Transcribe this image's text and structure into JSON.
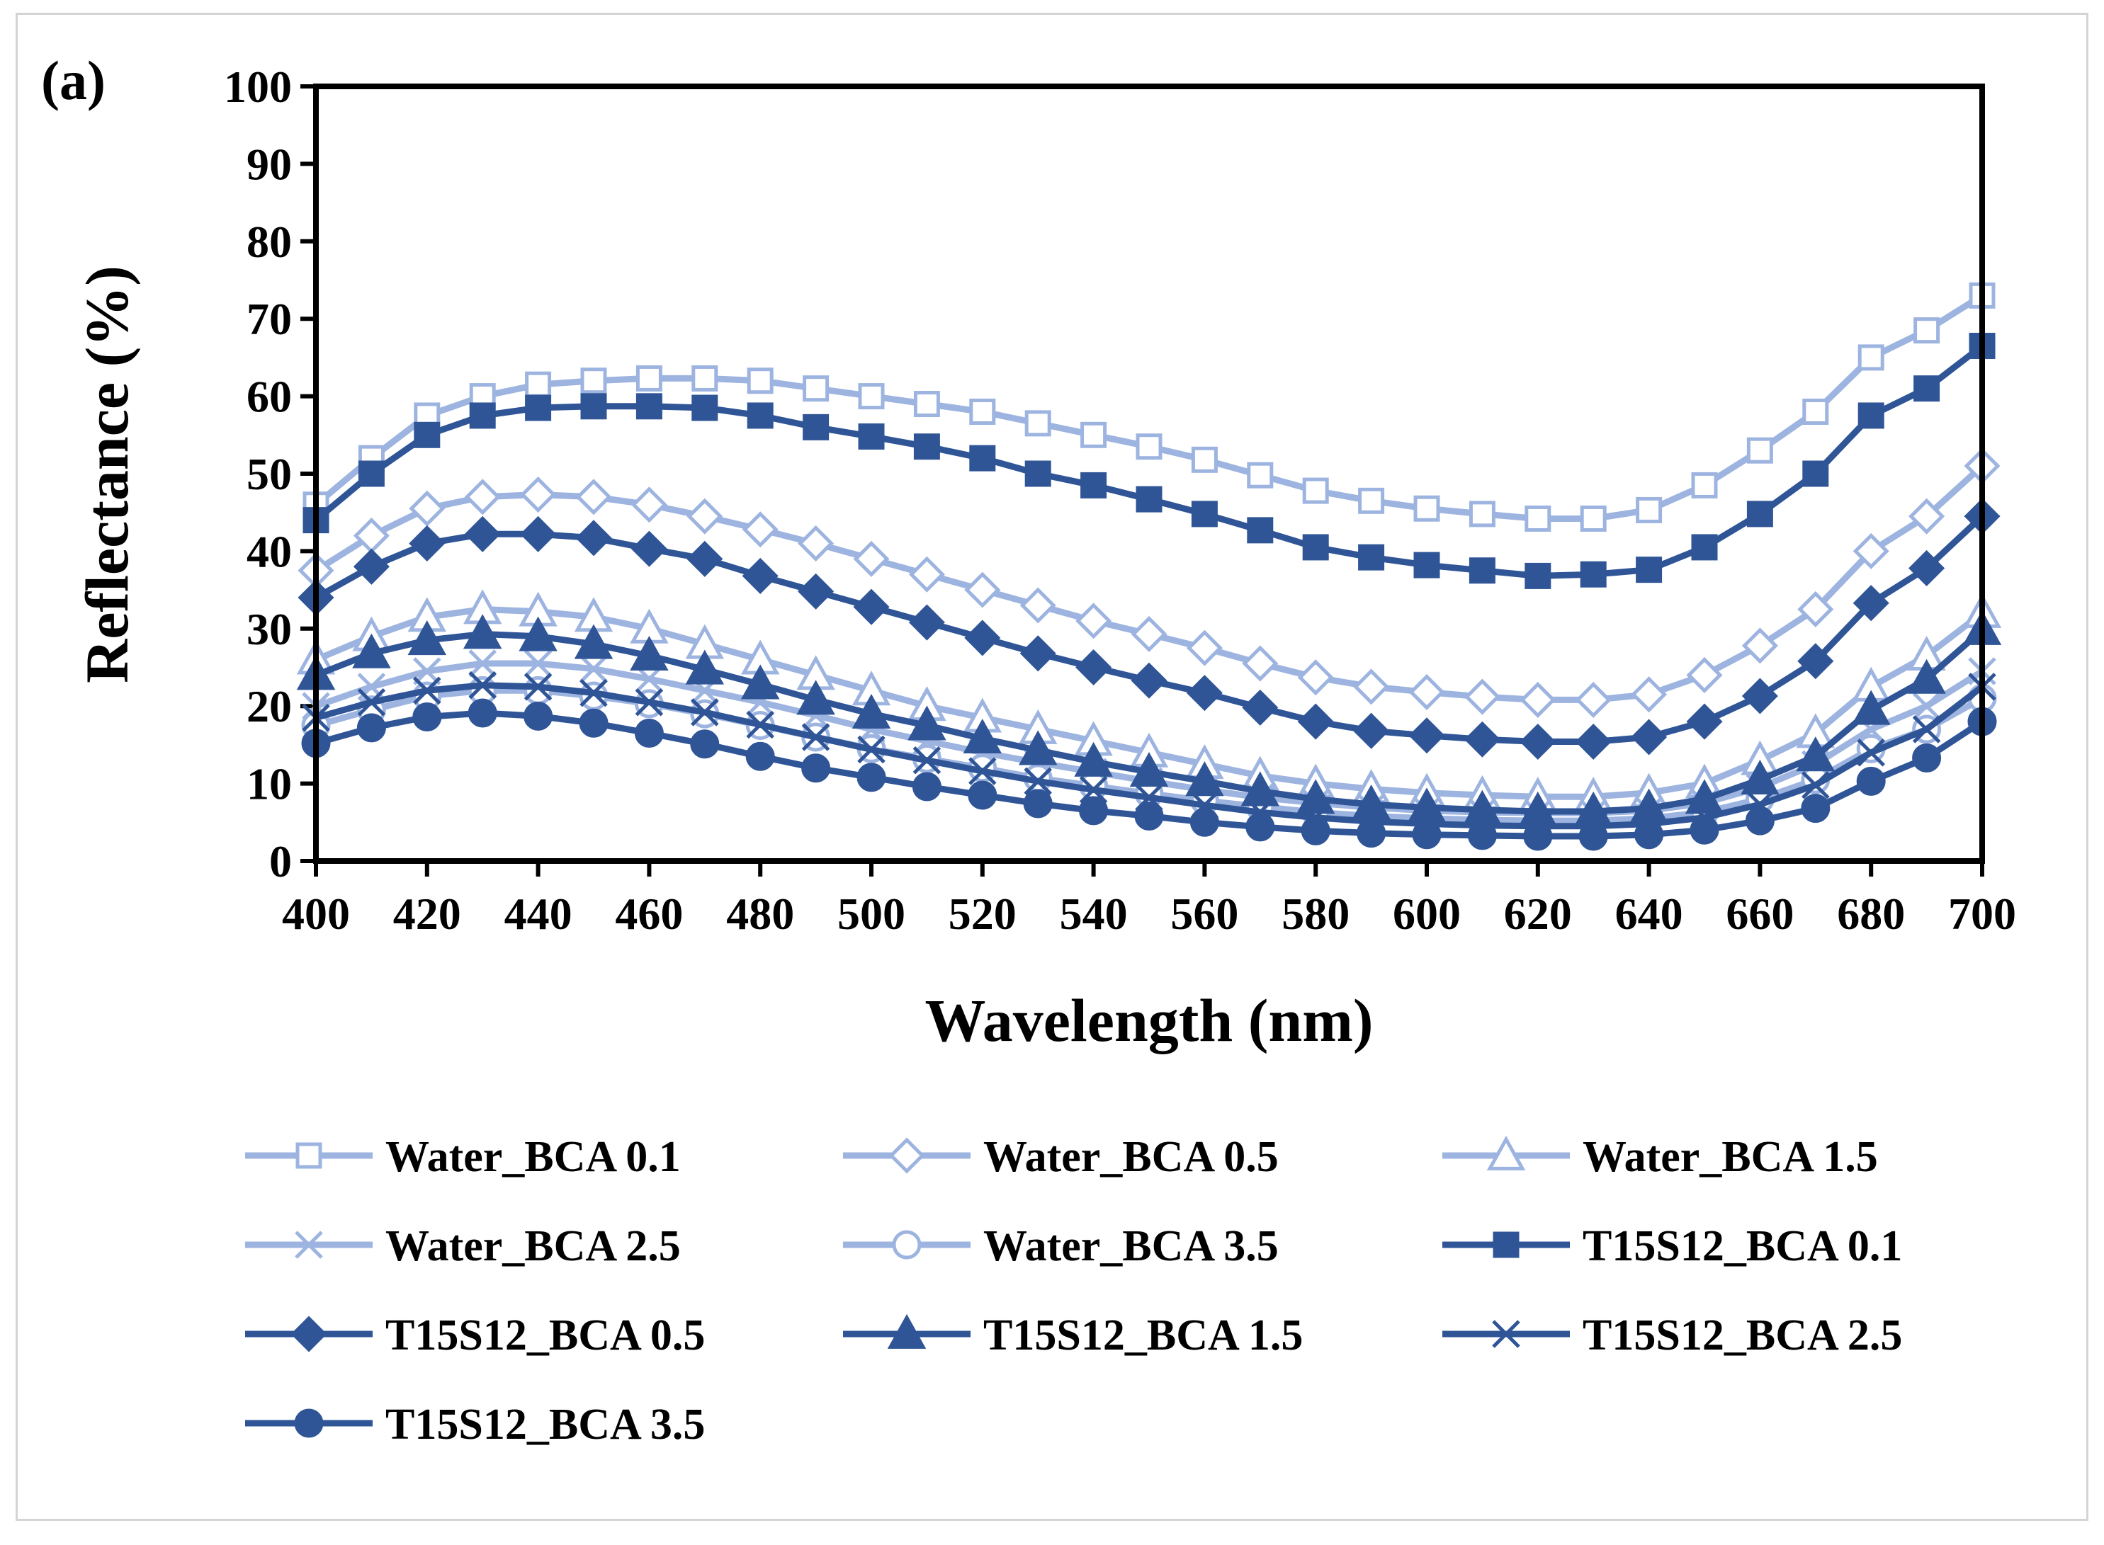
{
  "panel_label": "(a)",
  "chart_data": {
    "type": "line",
    "xlabel": "Wavelength (nm)",
    "ylabel": "Reflectance (%)",
    "xlim": [
      400,
      700
    ],
    "ylim": [
      0,
      100
    ],
    "xticks": [
      400,
      420,
      440,
      460,
      480,
      500,
      520,
      540,
      560,
      580,
      600,
      620,
      640,
      660,
      680,
      700
    ],
    "yticks": [
      0,
      10,
      20,
      30,
      40,
      50,
      60,
      70,
      80,
      90,
      100
    ],
    "x": [
      400,
      410,
      420,
      430,
      440,
      450,
      460,
      470,
      480,
      490,
      500,
      510,
      520,
      530,
      540,
      550,
      560,
      570,
      580,
      590,
      600,
      610,
      620,
      630,
      640,
      650,
      660,
      670,
      680,
      690,
      700
    ],
    "grid": false,
    "legend_position": "bottom",
    "series": [
      {
        "name": "Water_BCA 0.1",
        "color": "#9db4e0",
        "marker": "square",
        "filled": false,
        "values": [
          46,
          52,
          57.5,
          60,
          61.5,
          62,
          62.3,
          62.3,
          62,
          61,
          60,
          59,
          58,
          56.5,
          55,
          53.5,
          51.8,
          49.8,
          47.8,
          46.5,
          45.5,
          44.8,
          44.2,
          44.2,
          45.3,
          48.5,
          53,
          58,
          65,
          68.5,
          73
        ]
      },
      {
        "name": "Water_BCA 0.5",
        "color": "#9db4e0",
        "marker": "diamond",
        "filled": false,
        "values": [
          37.5,
          42,
          45.5,
          47,
          47.3,
          47,
          46,
          44.5,
          42.8,
          41,
          39,
          37,
          35,
          33,
          31,
          29.3,
          27.5,
          25.5,
          23.7,
          22.5,
          21.8,
          21.2,
          20.8,
          20.8,
          21.5,
          24,
          27.8,
          32.5,
          40,
          44.5,
          51
        ]
      },
      {
        "name": "Water_BCA 1.5",
        "color": "#9db4e0",
        "marker": "triangle",
        "filled": false,
        "values": [
          26,
          29,
          31.5,
          32.5,
          32.2,
          31.5,
          30,
          28,
          26,
          24,
          22,
          20,
          18.5,
          17,
          15.5,
          14,
          12.5,
          11,
          10,
          9.3,
          8.8,
          8.5,
          8.3,
          8.3,
          8.8,
          10,
          13,
          16.5,
          22.5,
          26.5,
          32
        ]
      },
      {
        "name": "Water_BCA 2.5",
        "color": "#9db4e0",
        "marker": "x",
        "filled": false,
        "values": [
          20,
          22.5,
          24.5,
          25.5,
          25.5,
          24.8,
          23.5,
          22,
          20.5,
          18.8,
          17,
          15.5,
          14,
          12.7,
          11.5,
          10.3,
          9.2,
          8.2,
          7.5,
          6.9,
          6.5,
          6.3,
          6.2,
          6.2,
          6.5,
          7.5,
          9.5,
          12.5,
          17,
          20,
          24.5
        ]
      },
      {
        "name": "Water_BCA 3.5",
        "color": "#9db4e0",
        "marker": "circle",
        "filled": false,
        "values": [
          17.5,
          19.5,
          21.3,
          22,
          22,
          21.3,
          20.3,
          19,
          17.5,
          16,
          14.5,
          13.2,
          12,
          10.7,
          9.7,
          8.7,
          7.8,
          7,
          6.3,
          5.8,
          5.5,
          5.3,
          5.2,
          5.2,
          5.5,
          6.3,
          8,
          10.5,
          14.5,
          17,
          21
        ]
      },
      {
        "name": "T15S12_BCA 0.1",
        "color": "#2f5597",
        "marker": "square",
        "filled": true,
        "values": [
          44,
          50,
          55,
          57.5,
          58.5,
          58.7,
          58.7,
          58.5,
          57.5,
          56,
          54.8,
          53.5,
          52,
          50,
          48.5,
          46.7,
          44.8,
          42.7,
          40.5,
          39.2,
          38.2,
          37.5,
          36.8,
          37,
          37.6,
          40.5,
          44.8,
          50,
          57.5,
          61,
          66.5
        ]
      },
      {
        "name": "T15S12_BCA 0.5",
        "color": "#2f5597",
        "marker": "diamond",
        "filled": true,
        "values": [
          34,
          38,
          41,
          42.2,
          42.2,
          41.7,
          40.3,
          39,
          36.8,
          34.8,
          32.8,
          30.8,
          28.8,
          26.8,
          25,
          23.3,
          21.7,
          19.8,
          18,
          16.8,
          16.2,
          15.7,
          15.4,
          15.4,
          16,
          18,
          21.3,
          25.8,
          33.3,
          37.8,
          44.5
        ]
      },
      {
        "name": "T15S12_BCA 1.5",
        "color": "#2f5597",
        "marker": "triangle",
        "filled": true,
        "values": [
          24,
          26.8,
          28.5,
          29.3,
          29,
          28,
          26.5,
          24.7,
          22.8,
          20.8,
          19,
          17.5,
          15.8,
          14.3,
          12.8,
          11.5,
          10.3,
          9,
          8,
          7.3,
          6.9,
          6.6,
          6.4,
          6.4,
          6.8,
          8,
          10.5,
          13.5,
          19.5,
          23.5,
          29.8
        ]
      },
      {
        "name": "T15S12_BCA 2.5",
        "color": "#2f5597",
        "marker": "x",
        "filled": false,
        "values": [
          18.5,
          20.5,
          22,
          22.7,
          22.5,
          21.7,
          20.5,
          19.2,
          17.6,
          16,
          14.4,
          13,
          11.6,
          10.3,
          9.2,
          8.2,
          7.2,
          6.3,
          5.6,
          5.1,
          4.8,
          4.6,
          4.5,
          4.5,
          4.8,
          5.6,
          7.3,
          9.8,
          14,
          17,
          22.5
        ]
      },
      {
        "name": "T15S12_BCA 3.5",
        "color": "#2f5597",
        "marker": "circle",
        "filled": true,
        "values": [
          15.2,
          17.2,
          18.6,
          19.1,
          18.7,
          17.8,
          16.5,
          15.1,
          13.5,
          12,
          10.8,
          9.6,
          8.5,
          7.4,
          6.5,
          5.8,
          5,
          4.4,
          3.9,
          3.6,
          3.4,
          3.3,
          3.2,
          3.2,
          3.4,
          4,
          5.2,
          6.8,
          10.3,
          13.3,
          18
        ]
      }
    ]
  }
}
